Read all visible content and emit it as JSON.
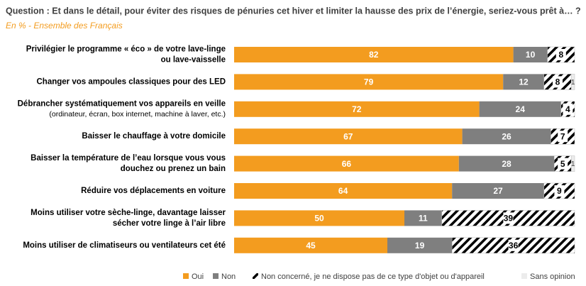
{
  "chart_data": {
    "type": "stacked-barh",
    "title": "Question : Et dans le détail, pour éviter des risques de pénuries cet hiver et limiter la hausse des prix de l’énergie, seriez-vous prêt à… ?",
    "subtitle": "En % - Ensemble des Français",
    "categories": [
      [
        "Privilégier le programme « éco » de votre lave-linge",
        "ou lave-vaisselle"
      ],
      [
        "Changer vos ampoules classiques pour des LED"
      ],
      [
        "Débrancher systématiquement vos appareils en veille",
        "(ordinateur, écran, box internet, machine à laver, etc.)"
      ],
      [
        "Baisser le chauffage à votre domicile"
      ],
      [
        "Baisser la température de l’eau lorsque vous vous",
        "douchez ou prenez un bain"
      ],
      [
        "Réduire vos déplacements en voiture"
      ],
      [
        "Moins utiliser votre sèche-linge, davantage laisser",
        "sécher votre linge à l’air libre"
      ],
      [
        "Moins utiliser de climatiseurs ou ventilateurs cet été"
      ]
    ],
    "series": [
      {
        "name": "Oui",
        "color": "#f39c1f",
        "values": [
          82,
          79,
          72,
          67,
          66,
          64,
          50,
          45
        ]
      },
      {
        "name": "Non",
        "color": "#7f7f7f",
        "values": [
          10,
          12,
          24,
          26,
          28,
          27,
          11,
          19
        ]
      },
      {
        "name": "Non concerné, je ne dispose pas de ce type d'objet ou d'appareil",
        "color": "hatch",
        "values": [
          8,
          8,
          4,
          7,
          5,
          9,
          39,
          36
        ]
      },
      {
        "name": "Sans opinion",
        "color": "#ececec",
        "values": [
          null,
          1,
          null,
          null,
          1,
          null,
          null,
          null
        ]
      }
    ],
    "xlim": [
      0,
      100
    ]
  }
}
